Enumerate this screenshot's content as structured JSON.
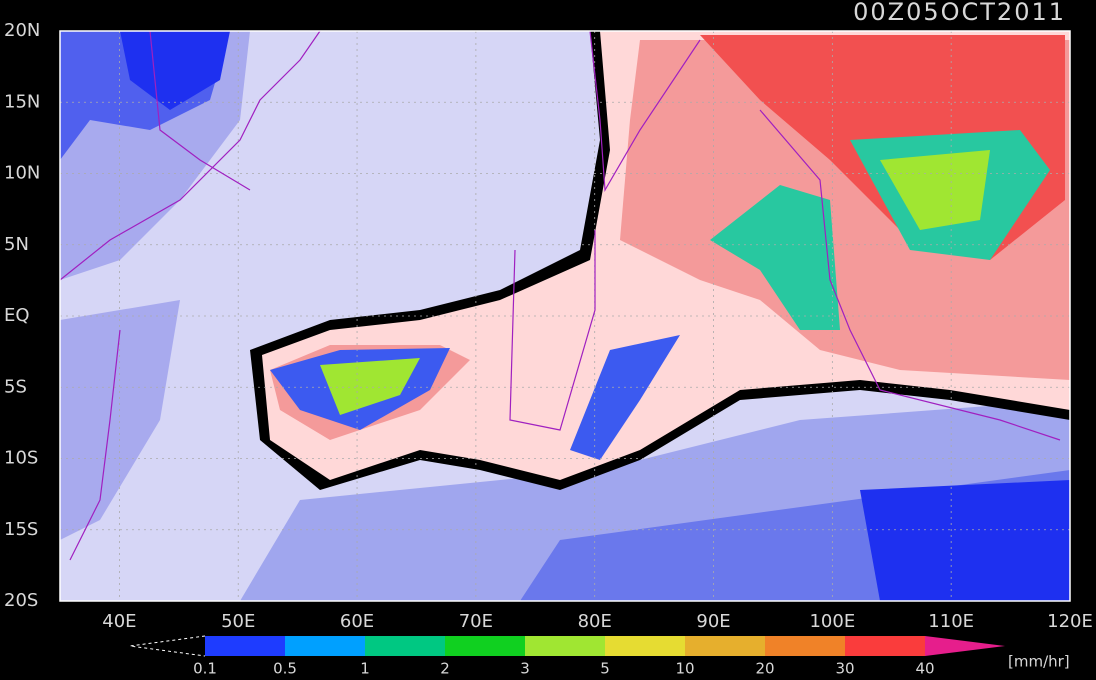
{
  "chart_data": {
    "type": "contour",
    "title": "00Z05OCT2011",
    "xlim": [
      35,
      120
    ],
    "xticks": [
      {
        "value": 40,
        "label": "40E"
      },
      {
        "value": 50,
        "label": "50E"
      },
      {
        "value": 60,
        "label": "60E"
      },
      {
        "value": 70,
        "label": "70E"
      },
      {
        "value": 80,
        "label": "80E"
      },
      {
        "value": 90,
        "label": "90E"
      },
      {
        "value": 100,
        "label": "100E"
      },
      {
        "value": 110,
        "label": "110E"
      },
      {
        "value": 120,
        "label": "120E"
      }
    ],
    "ylim": [
      -20,
      20
    ],
    "yticks": [
      {
        "value": 20,
        "label": "20N"
      },
      {
        "value": 15,
        "label": "15N"
      },
      {
        "value": 10,
        "label": "10N"
      },
      {
        "value": 5,
        "label": "5N"
      },
      {
        "value": 0,
        "label": "EQ"
      },
      {
        "value": -5,
        "label": "5S"
      },
      {
        "value": -10,
        "label": "10S"
      },
      {
        "value": -15,
        "label": "15S"
      },
      {
        "value": -20,
        "label": "20S"
      }
    ],
    "grid": true,
    "colorbar": {
      "levels": [
        0.1,
        0.5,
        1,
        2,
        3,
        5,
        10,
        20,
        30,
        40
      ],
      "colors": [
        "#1e3cff",
        "#00a0ff",
        "#00c882",
        "#10d020",
        "#a0e632",
        "#e6dc32",
        "#e6af2d",
        "#f08228",
        "#fa3c3c"
      ],
      "over_color": "#e61e8c",
      "unit": "[mm/hr]"
    }
  }
}
